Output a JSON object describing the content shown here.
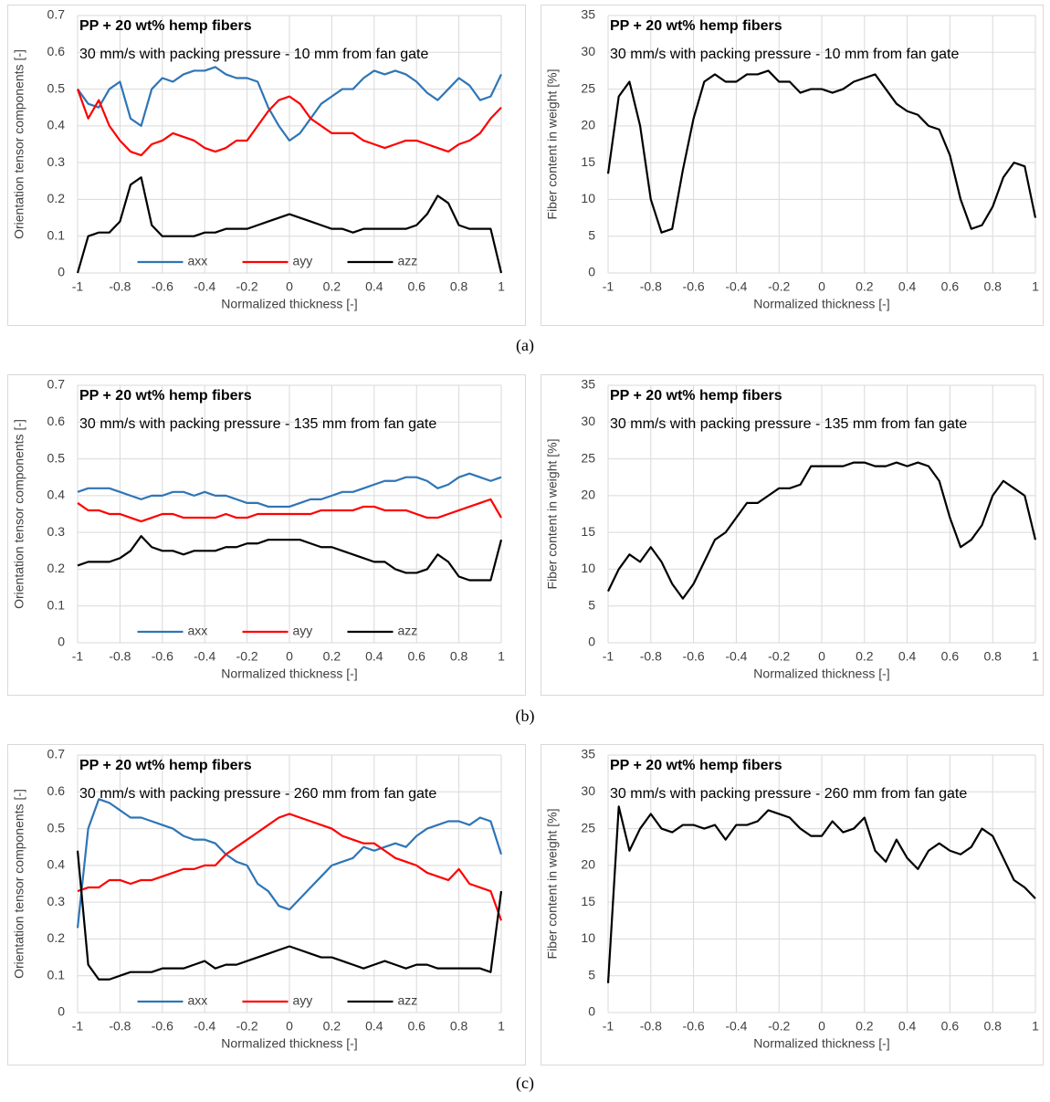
{
  "chart_data": [
    {
      "type": "line",
      "title": "PP + 20 wt% hemp fibers",
      "subtitle": "30 mm/s with packing pressure - 10 mm from fan gate",
      "x_label": "Normalized thickness [-]",
      "y_label": "Orientation tensor components [-]",
      "x": [
        -1,
        -0.95,
        -0.9,
        -0.85,
        -0.8,
        -0.75,
        -0.7,
        -0.65,
        -0.6,
        -0.55,
        -0.5,
        -0.45,
        -0.4,
        -0.35,
        -0.3,
        -0.25,
        -0.2,
        -0.15,
        -0.1,
        -0.05,
        0,
        0.05,
        0.1,
        0.15,
        0.2,
        0.25,
        0.3,
        0.35,
        0.4,
        0.45,
        0.5,
        0.55,
        0.6,
        0.65,
        0.7,
        0.75,
        0.8,
        0.85,
        0.9,
        0.95,
        1
      ],
      "series": [
        {
          "name": "axx",
          "color": "#2e75b6",
          "values": [
            0.5,
            0.46,
            0.45,
            0.5,
            0.52,
            0.42,
            0.4,
            0.5,
            0.53,
            0.52,
            0.54,
            0.55,
            0.55,
            0.56,
            0.54,
            0.53,
            0.53,
            0.52,
            0.45,
            0.4,
            0.36,
            0.38,
            0.42,
            0.46,
            0.48,
            0.5,
            0.5,
            0.53,
            0.55,
            0.54,
            0.55,
            0.54,
            0.52,
            0.49,
            0.47,
            0.5,
            0.53,
            0.51,
            0.47,
            0.48,
            0.54
          ]
        },
        {
          "name": "ayy",
          "color": "#ff0000",
          "values": [
            0.5,
            0.42,
            0.47,
            0.4,
            0.36,
            0.33,
            0.32,
            0.35,
            0.36,
            0.38,
            0.37,
            0.36,
            0.34,
            0.33,
            0.34,
            0.36,
            0.36,
            0.4,
            0.44,
            0.47,
            0.48,
            0.46,
            0.42,
            0.4,
            0.38,
            0.38,
            0.38,
            0.36,
            0.35,
            0.34,
            0.35,
            0.36,
            0.36,
            0.35,
            0.34,
            0.33,
            0.35,
            0.36,
            0.38,
            0.42,
            0.45
          ]
        },
        {
          "name": "azz",
          "color": "#000000",
          "values": [
            0,
            0.1,
            0.11,
            0.11,
            0.14,
            0.24,
            0.26,
            0.13,
            0.1,
            0.1,
            0.1,
            0.1,
            0.11,
            0.11,
            0.12,
            0.12,
            0.12,
            0.13,
            0.14,
            0.15,
            0.16,
            0.15,
            0.14,
            0.13,
            0.12,
            0.12,
            0.11,
            0.12,
            0.12,
            0.12,
            0.12,
            0.12,
            0.13,
            0.16,
            0.21,
            0.19,
            0.13,
            0.12,
            0.12,
            0.12,
            0
          ]
        }
      ],
      "xlim": [
        -1,
        1
      ],
      "xticks": [
        -1,
        -0.8,
        -0.6,
        -0.4,
        -0.2,
        0,
        0.2,
        0.4,
        0.6,
        0.8,
        1
      ],
      "ylim": [
        0,
        0.7
      ],
      "yticks": [
        0,
        0.1,
        0.2,
        0.3,
        0.4,
        0.5,
        0.6,
        0.7
      ],
      "grid": true,
      "legend": "bottom"
    },
    {
      "type": "line",
      "title": "PP + 20 wt% hemp fibers",
      "subtitle": "30 mm/s with packing pressure - 10 mm from fan gate",
      "x_label": "Normalized thickness [-]",
      "y_label": "Fiber content in weight [%]",
      "x": [
        -1,
        -0.95,
        -0.9,
        -0.85,
        -0.8,
        -0.75,
        -0.7,
        -0.65,
        -0.6,
        -0.55,
        -0.5,
        -0.45,
        -0.4,
        -0.35,
        -0.3,
        -0.25,
        -0.2,
        -0.15,
        -0.1,
        -0.05,
        0,
        0.05,
        0.1,
        0.15,
        0.2,
        0.25,
        0.3,
        0.35,
        0.4,
        0.45,
        0.5,
        0.55,
        0.6,
        0.65,
        0.7,
        0.75,
        0.8,
        0.85,
        0.9,
        0.95,
        1
      ],
      "series": [
        {
          "color": "#000000",
          "values": [
            13.5,
            24,
            26,
            20,
            10,
            5.5,
            6,
            14,
            21,
            26,
            27,
            26,
            26,
            27,
            27,
            27.5,
            26,
            26,
            24.5,
            25,
            25,
            24.5,
            25,
            26,
            26.5,
            27,
            25,
            23,
            22,
            21.5,
            20,
            19.5,
            16,
            10,
            6,
            6.5,
            9,
            13,
            15,
            14.5,
            7.5
          ]
        }
      ],
      "xlim": [
        -1,
        1
      ],
      "xticks": [
        -1,
        -0.8,
        -0.6,
        -0.4,
        -0.2,
        0,
        0.2,
        0.4,
        0.6,
        0.8,
        1
      ],
      "ylim": [
        0,
        35
      ],
      "yticks": [
        0,
        5,
        10,
        15,
        20,
        25,
        30,
        35
      ],
      "grid": true
    },
    {
      "type": "line",
      "title": "PP + 20 wt% hemp fibers",
      "subtitle": "30 mm/s with packing pressure - 135 mm from fan gate",
      "x_label": "Normalized thickness [-]",
      "y_label": "Orientation tensor components [-]",
      "x": [
        -1,
        -0.95,
        -0.9,
        -0.85,
        -0.8,
        -0.75,
        -0.7,
        -0.65,
        -0.6,
        -0.55,
        -0.5,
        -0.45,
        -0.4,
        -0.35,
        -0.3,
        -0.25,
        -0.2,
        -0.15,
        -0.1,
        -0.05,
        0,
        0.05,
        0.1,
        0.15,
        0.2,
        0.25,
        0.3,
        0.35,
        0.4,
        0.45,
        0.5,
        0.55,
        0.6,
        0.65,
        0.7,
        0.75,
        0.8,
        0.85,
        0.9,
        0.95,
        1
      ],
      "series": [
        {
          "name": "axx",
          "color": "#2e75b6",
          "values": [
            0.41,
            0.42,
            0.42,
            0.42,
            0.41,
            0.4,
            0.39,
            0.4,
            0.4,
            0.41,
            0.41,
            0.4,
            0.41,
            0.4,
            0.4,
            0.39,
            0.38,
            0.38,
            0.37,
            0.37,
            0.37,
            0.38,
            0.39,
            0.39,
            0.4,
            0.41,
            0.41,
            0.42,
            0.43,
            0.44,
            0.44,
            0.45,
            0.45,
            0.44,
            0.42,
            0.43,
            0.45,
            0.46,
            0.45,
            0.44,
            0.45
          ]
        },
        {
          "name": "ayy",
          "color": "#ff0000",
          "values": [
            0.38,
            0.36,
            0.36,
            0.35,
            0.35,
            0.34,
            0.33,
            0.34,
            0.35,
            0.35,
            0.34,
            0.34,
            0.34,
            0.34,
            0.35,
            0.34,
            0.34,
            0.35,
            0.35,
            0.35,
            0.35,
            0.35,
            0.35,
            0.36,
            0.36,
            0.36,
            0.36,
            0.37,
            0.37,
            0.36,
            0.36,
            0.36,
            0.35,
            0.34,
            0.34,
            0.35,
            0.36,
            0.37,
            0.38,
            0.39,
            0.34
          ]
        },
        {
          "name": "azz",
          "color": "#000000",
          "values": [
            0.21,
            0.22,
            0.22,
            0.22,
            0.23,
            0.25,
            0.29,
            0.26,
            0.25,
            0.25,
            0.24,
            0.25,
            0.25,
            0.25,
            0.26,
            0.26,
            0.27,
            0.27,
            0.28,
            0.28,
            0.28,
            0.28,
            0.27,
            0.26,
            0.26,
            0.25,
            0.24,
            0.23,
            0.22,
            0.22,
            0.2,
            0.19,
            0.19,
            0.2,
            0.24,
            0.22,
            0.18,
            0.17,
            0.17,
            0.17,
            0.28
          ]
        }
      ],
      "xlim": [
        -1,
        1
      ],
      "xticks": [
        -1,
        -0.8,
        -0.6,
        -0.4,
        -0.2,
        0,
        0.2,
        0.4,
        0.6,
        0.8,
        1
      ],
      "ylim": [
        0,
        0.7
      ],
      "yticks": [
        0,
        0.1,
        0.2,
        0.3,
        0.4,
        0.5,
        0.6,
        0.7
      ],
      "grid": true,
      "legend": "bottom"
    },
    {
      "type": "line",
      "title": "PP + 20 wt% hemp fibers",
      "subtitle": "30 mm/s with packing pressure - 135 mm from fan gate",
      "x_label": "Normalized thickness [-]",
      "y_label": "Fiber content in weight [%]",
      "x": [
        -1,
        -0.95,
        -0.9,
        -0.85,
        -0.8,
        -0.75,
        -0.7,
        -0.65,
        -0.6,
        -0.55,
        -0.5,
        -0.45,
        -0.4,
        -0.35,
        -0.3,
        -0.25,
        -0.2,
        -0.15,
        -0.1,
        -0.05,
        0,
        0.05,
        0.1,
        0.15,
        0.2,
        0.25,
        0.3,
        0.35,
        0.4,
        0.45,
        0.5,
        0.55,
        0.6,
        0.65,
        0.7,
        0.75,
        0.8,
        0.85,
        0.9,
        0.95,
        1
      ],
      "series": [
        {
          "color": "#000000",
          "values": [
            7,
            10,
            12,
            11,
            13,
            11,
            8,
            6,
            8,
            11,
            14,
            15,
            17,
            19,
            19,
            20,
            21,
            21,
            21.5,
            24,
            24,
            24,
            24,
            24.5,
            24.5,
            24,
            24,
            24.5,
            24,
            24.5,
            24,
            22,
            17,
            13,
            14,
            16,
            20,
            22,
            21,
            20,
            14
          ]
        }
      ],
      "xlim": [
        -1,
        1
      ],
      "xticks": [
        -1,
        -0.8,
        -0.6,
        -0.4,
        -0.2,
        0,
        0.2,
        0.4,
        0.6,
        0.8,
        1
      ],
      "ylim": [
        0,
        35
      ],
      "yticks": [
        0,
        5,
        10,
        15,
        20,
        25,
        30,
        35
      ],
      "grid": true
    },
    {
      "type": "line",
      "title": "PP + 20 wt% hemp fibers",
      "subtitle": "30 mm/s with packing pressure - 260 mm from fan gate",
      "x_label": "Normalized thickness [-]",
      "y_label": "Orientation tensor components [-]",
      "x": [
        -1,
        -0.95,
        -0.9,
        -0.85,
        -0.8,
        -0.75,
        -0.7,
        -0.65,
        -0.6,
        -0.55,
        -0.5,
        -0.45,
        -0.4,
        -0.35,
        -0.3,
        -0.25,
        -0.2,
        -0.15,
        -0.1,
        -0.05,
        0,
        0.05,
        0.1,
        0.15,
        0.2,
        0.25,
        0.3,
        0.35,
        0.4,
        0.45,
        0.5,
        0.55,
        0.6,
        0.65,
        0.7,
        0.75,
        0.8,
        0.85,
        0.9,
        0.95,
        1
      ],
      "series": [
        {
          "name": "axx",
          "color": "#2e75b6",
          "values": [
            0.23,
            0.5,
            0.58,
            0.57,
            0.55,
            0.53,
            0.53,
            0.52,
            0.51,
            0.5,
            0.48,
            0.47,
            0.47,
            0.46,
            0.43,
            0.41,
            0.4,
            0.35,
            0.33,
            0.29,
            0.28,
            0.31,
            0.34,
            0.37,
            0.4,
            0.41,
            0.42,
            0.45,
            0.44,
            0.45,
            0.46,
            0.45,
            0.48,
            0.5,
            0.51,
            0.52,
            0.52,
            0.51,
            0.53,
            0.52,
            0.43
          ]
        },
        {
          "name": "ayy",
          "color": "#ff0000",
          "values": [
            0.33,
            0.34,
            0.34,
            0.36,
            0.36,
            0.35,
            0.36,
            0.36,
            0.37,
            0.38,
            0.39,
            0.39,
            0.4,
            0.4,
            0.43,
            0.45,
            0.47,
            0.49,
            0.51,
            0.53,
            0.54,
            0.53,
            0.52,
            0.51,
            0.5,
            0.48,
            0.47,
            0.46,
            0.46,
            0.44,
            0.42,
            0.41,
            0.4,
            0.38,
            0.37,
            0.36,
            0.39,
            0.35,
            0.34,
            0.33,
            0.25
          ]
        },
        {
          "name": "azz",
          "color": "#000000",
          "values": [
            0.44,
            0.13,
            0.09,
            0.09,
            0.1,
            0.11,
            0.11,
            0.11,
            0.12,
            0.12,
            0.12,
            0.13,
            0.14,
            0.12,
            0.13,
            0.13,
            0.14,
            0.15,
            0.16,
            0.17,
            0.18,
            0.17,
            0.16,
            0.15,
            0.15,
            0.14,
            0.13,
            0.12,
            0.13,
            0.14,
            0.13,
            0.12,
            0.13,
            0.13,
            0.12,
            0.12,
            0.12,
            0.12,
            0.12,
            0.11,
            0.33
          ]
        }
      ],
      "xlim": [
        -1,
        1
      ],
      "xticks": [
        -1,
        -0.8,
        -0.6,
        -0.4,
        -0.2,
        0,
        0.2,
        0.4,
        0.6,
        0.8,
        1
      ],
      "ylim": [
        0,
        0.7
      ],
      "yticks": [
        0,
        0.1,
        0.2,
        0.3,
        0.4,
        0.5,
        0.6,
        0.7
      ],
      "grid": true,
      "legend": "bottom"
    },
    {
      "type": "line",
      "title": "PP + 20 wt% hemp fibers",
      "subtitle": "30 mm/s with packing pressure - 260 mm from fan gate",
      "x_label": "Normalized thickness [-]",
      "y_label": "Fiber content in weight [%]",
      "x": [
        -1,
        -0.95,
        -0.9,
        -0.85,
        -0.8,
        -0.75,
        -0.7,
        -0.65,
        -0.6,
        -0.55,
        -0.5,
        -0.45,
        -0.4,
        -0.35,
        -0.3,
        -0.25,
        -0.2,
        -0.15,
        -0.1,
        -0.05,
        0,
        0.05,
        0.1,
        0.15,
        0.2,
        0.25,
        0.3,
        0.35,
        0.4,
        0.45,
        0.5,
        0.55,
        0.6,
        0.65,
        0.7,
        0.75,
        0.8,
        0.85,
        0.9,
        0.95,
        1
      ],
      "series": [
        {
          "color": "#000000",
          "values": [
            4,
            28,
            22,
            25,
            27,
            25,
            24.5,
            25.5,
            25.5,
            25,
            25.5,
            23.5,
            25.5,
            25.5,
            26,
            27.5,
            27,
            26.5,
            25,
            24,
            24,
            26,
            24.5,
            25,
            26.5,
            22,
            20.5,
            23.5,
            21,
            19.5,
            22,
            23,
            22,
            21.5,
            22.5,
            25,
            24,
            21,
            18,
            17,
            15.5
          ]
        }
      ],
      "xlim": [
        -1,
        1
      ],
      "xticks": [
        -1,
        -0.8,
        -0.6,
        -0.4,
        -0.2,
        0,
        0.2,
        0.4,
        0.6,
        0.8,
        1
      ],
      "ylim": [
        0,
        35
      ],
      "yticks": [
        0,
        5,
        10,
        15,
        20,
        25,
        30,
        35
      ],
      "grid": true
    }
  ],
  "panel_labels": [
    "(a)",
    "(b)",
    "(c)"
  ]
}
